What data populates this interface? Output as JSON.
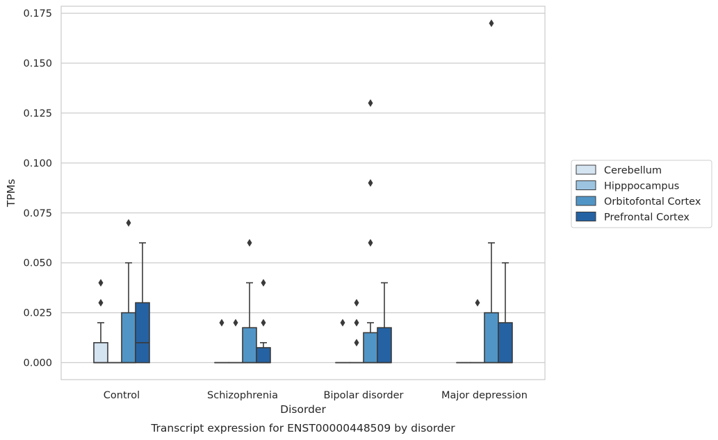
{
  "chart_data": {
    "type": "boxplot",
    "xlabel": "Disorder",
    "ylabel": "TPMs",
    "caption": "Transcript expression for ENST00000448509 by disorder",
    "ylim": [
      -0.0085,
      0.1785
    ],
    "yticks": [
      "0.000",
      "0.025",
      "0.050",
      "0.075",
      "0.100",
      "0.125",
      "0.150",
      "0.175"
    ],
    "grid": "horizontal",
    "legend_position": "right",
    "categories": [
      "Control",
      "Schizophrenia",
      "Bipolar disorder",
      "Major depression"
    ],
    "series": [
      {
        "name": "Cerebellum",
        "color": "#d5e4f1",
        "boxes": [
          {
            "q1": 0.0,
            "median": 0.0,
            "q3": 0.01,
            "whisker_low": 0.0,
            "whisker_high": 0.02,
            "outliers": [
              0.03,
              0.04
            ]
          },
          {
            "q1": 0.0,
            "median": 0.0,
            "q3": 0.0,
            "whisker_low": 0.0,
            "whisker_high": 0.0,
            "outliers": [
              0.02
            ]
          },
          {
            "q1": 0.0,
            "median": 0.0,
            "q3": 0.0,
            "whisker_low": 0.0,
            "whisker_high": 0.0,
            "outliers": [
              0.02
            ]
          },
          {
            "q1": 0.0,
            "median": 0.0,
            "q3": 0.0,
            "whisker_low": 0.0,
            "whisker_high": 0.0,
            "outliers": []
          }
        ]
      },
      {
        "name": "Hipppocampus",
        "color": "#9cc4e1",
        "boxes": [
          {
            "q1": 0.0,
            "median": 0.0,
            "q3": 0.0,
            "whisker_low": 0.0,
            "whisker_high": 0.0,
            "outliers": []
          },
          {
            "q1": 0.0,
            "median": 0.0,
            "q3": 0.0,
            "whisker_low": 0.0,
            "whisker_high": 0.0,
            "outliers": [
              0.02
            ]
          },
          {
            "q1": 0.0,
            "median": 0.0,
            "q3": 0.0,
            "whisker_low": 0.0,
            "whisker_high": 0.0,
            "outliers": [
              0.01,
              0.02,
              0.03
            ]
          },
          {
            "q1": 0.0,
            "median": 0.0,
            "q3": 0.0,
            "whisker_low": 0.0,
            "whisker_high": 0.0,
            "outliers": [
              0.03
            ]
          }
        ]
      },
      {
        "name": "Orbitofontal Cortex",
        "color": "#5195c6",
        "boxes": [
          {
            "q1": 0.0,
            "median": 0.0,
            "q3": 0.025,
            "whisker_low": 0.0,
            "whisker_high": 0.05,
            "outliers": [
              0.07
            ]
          },
          {
            "q1": 0.0,
            "median": 0.0,
            "q3": 0.0175,
            "whisker_low": 0.0,
            "whisker_high": 0.04,
            "outliers": [
              0.06
            ]
          },
          {
            "q1": 0.0,
            "median": 0.0,
            "q3": 0.015,
            "whisker_low": 0.0,
            "whisker_high": 0.02,
            "outliers": [
              0.06,
              0.09,
              0.13
            ]
          },
          {
            "q1": 0.0,
            "median": 0.0,
            "q3": 0.025,
            "whisker_low": 0.0,
            "whisker_high": 0.06,
            "outliers": [
              0.17
            ]
          }
        ]
      },
      {
        "name": "Prefrontal Cortex",
        "color": "#2562a3",
        "boxes": [
          {
            "q1": 0.0,
            "median": 0.01,
            "q3": 0.03,
            "whisker_low": 0.0,
            "whisker_high": 0.06,
            "outliers": []
          },
          {
            "q1": 0.0,
            "median": 0.0,
            "q3": 0.0075,
            "whisker_low": 0.0,
            "whisker_high": 0.01,
            "outliers": [
              0.02,
              0.04
            ]
          },
          {
            "q1": 0.0,
            "median": 0.0,
            "q3": 0.0175,
            "whisker_low": 0.0,
            "whisker_high": 0.04,
            "outliers": []
          },
          {
            "q1": 0.0,
            "median": 0.0,
            "q3": 0.02,
            "whisker_low": 0.0,
            "whisker_high": 0.05,
            "outliers": []
          }
        ]
      }
    ]
  }
}
